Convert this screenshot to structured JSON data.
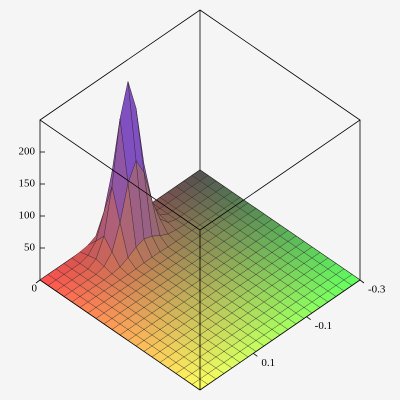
{
  "chart_data": {
    "type": "surface",
    "xlim": [
      0,
      1
    ],
    "xticks": [
      0
    ],
    "ylim": [
      -0.3,
      0.3
    ],
    "yticks": [
      0.1,
      -0.1,
      -0.3
    ],
    "zlim": [
      0,
      250
    ],
    "zticks": [
      50,
      100,
      150,
      200
    ],
    "z": [
      [
        0,
        0,
        0,
        0,
        0,
        0,
        0,
        0,
        0,
        0,
        0,
        0,
        0,
        0,
        0,
        0,
        0,
        0,
        0,
        0,
        0
      ],
      [
        0,
        0,
        0,
        0,
        0,
        0,
        0,
        0,
        0,
        0,
        0,
        0,
        0,
        0,
        0,
        0,
        0,
        0,
        0,
        0,
        0
      ],
      [
        0,
        0,
        0,
        0,
        0,
        0,
        0,
        0,
        0,
        0,
        0,
        0,
        0,
        0,
        0,
        0,
        0,
        0,
        0,
        0,
        0
      ],
      [
        0,
        0,
        0,
        0,
        0,
        0,
        0,
        0,
        0,
        0,
        0,
        0,
        0,
        0,
        0,
        0,
        0,
        0,
        0,
        0,
        0
      ],
      [
        0,
        0,
        0,
        0,
        0,
        0,
        0,
        0,
        0,
        0,
        0,
        0,
        0,
        0,
        0,
        0,
        0,
        0,
        0,
        0,
        0
      ],
      [
        0,
        0,
        0,
        0,
        0,
        0,
        0,
        0,
        0,
        0,
        0,
        0,
        0,
        0,
        0,
        0,
        0,
        0,
        0,
        0,
        0
      ],
      [
        0,
        0,
        0,
        0,
        0,
        0,
        0,
        0,
        0,
        0,
        0,
        0,
        0,
        0,
        0,
        0,
        0,
        0,
        0,
        0,
        0
      ],
      [
        1,
        4,
        7,
        4,
        1,
        0,
        0,
        0,
        0,
        0,
        0,
        0,
        0,
        0,
        0,
        0,
        0,
        0,
        0,
        0,
        0
      ],
      [
        3,
        18,
        34,
        18,
        3,
        0,
        0,
        0,
        0,
        0,
        0,
        0,
        0,
        0,
        0,
        0,
        0,
        0,
        0,
        0,
        0
      ],
      [
        9,
        55,
        103,
        55,
        9,
        0,
        0,
        0,
        0,
        0,
        0,
        0,
        0,
        0,
        0,
        0,
        0,
        0,
        0,
        0,
        0
      ],
      [
        17,
        108,
        200,
        108,
        17,
        1,
        0,
        0,
        0,
        0,
        0,
        0,
        0,
        0,
        0,
        0,
        0,
        0,
        0,
        0,
        0
      ],
      [
        21,
        135,
        250,
        135,
        21,
        1,
        0,
        0,
        0,
        0,
        0,
        0,
        0,
        0,
        0,
        0,
        0,
        0,
        0,
        0,
        0
      ],
      [
        17,
        108,
        200,
        108,
        17,
        1,
        0,
        0,
        0,
        0,
        0,
        0,
        0,
        0,
        0,
        0,
        0,
        0,
        0,
        0,
        0
      ],
      [
        9,
        55,
        103,
        55,
        9,
        0,
        0,
        0,
        0,
        0,
        0,
        0,
        0,
        0,
        0,
        0,
        0,
        0,
        0,
        0,
        0
      ],
      [
        3,
        18,
        34,
        18,
        3,
        0,
        0,
        0,
        0,
        0,
        0,
        0,
        0,
        0,
        0,
        0,
        0,
        0,
        0,
        0,
        0
      ],
      [
        1,
        4,
        7,
        4,
        1,
        0,
        0,
        0,
        0,
        0,
        0,
        0,
        0,
        0,
        0,
        0,
        0,
        0,
        0,
        0,
        0
      ],
      [
        0,
        0,
        0,
        0,
        0,
        0,
        0,
        0,
        0,
        0,
        0,
        0,
        0,
        0,
        0,
        0,
        0,
        0,
        0,
        0,
        0
      ],
      [
        0,
        0,
        0,
        0,
        0,
        0,
        0,
        0,
        0,
        0,
        0,
        0,
        0,
        0,
        0,
        0,
        0,
        0,
        0,
        0,
        0
      ],
      [
        0,
        0,
        0,
        0,
        0,
        0,
        0,
        0,
        0,
        0,
        0,
        0,
        0,
        0,
        0,
        0,
        0,
        0,
        0,
        0,
        0
      ],
      [
        0,
        0,
        0,
        0,
        0,
        0,
        0,
        0,
        0,
        0,
        0,
        0,
        0,
        0,
        0,
        0,
        0,
        0,
        0,
        0,
        0
      ],
      [
        0,
        0,
        0,
        0,
        0,
        0,
        0,
        0,
        0,
        0,
        0,
        0,
        0,
        0,
        0,
        0,
        0,
        0,
        0,
        0,
        0
      ]
    ]
  }
}
